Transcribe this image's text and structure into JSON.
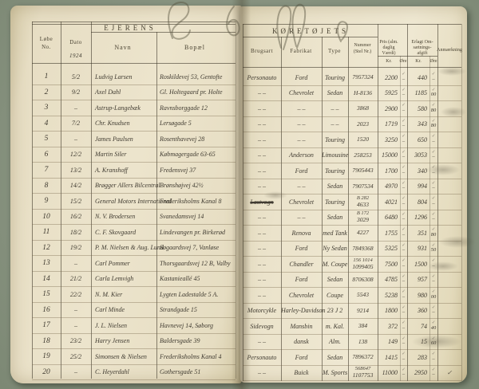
{
  "left_page": {
    "title": "EJERENS",
    "no_l1": "Løbe",
    "no_l2": "No.",
    "dato": "Dato",
    "year": "1924",
    "navn": "Navn",
    "bopael": "Bopæl"
  },
  "right_page": {
    "title": "KØRETØJETS",
    "brugsart": "Brugsart",
    "fabrikat": "Fabrikat",
    "type": "Type",
    "nummer_l1": "Nummer",
    "nummer_l2": "(Stel Nr.)",
    "pris_l1": "Pris (alm.",
    "pris_l2": "daglig",
    "pris_l3": "Værdi)",
    "afgift_l1": "Erlagt Om-",
    "afgift_l2": "sætnings-",
    "afgift_l3": "afgift",
    "anm": "Anmærkning",
    "kr": "Kr.",
    "ore": "Øre",
    "tick": "✓"
  },
  "rows": [
    {
      "no": "1",
      "dato": "5/2",
      "navn": "Ludvig Larsen",
      "bopael": "Roskildevej 53, Gentofte",
      "brugsart": "Personauto",
      "fabrikat": "Ford",
      "type": "Touring",
      "nummer": "7957324",
      "pris_kr": "2200",
      "pris_ore": "–",
      "afgift_kr": "440",
      "afgift_ore": "–",
      "anm": ""
    },
    {
      "no": "2",
      "dato": "9/2",
      "navn": "Axel Dahl",
      "bopael": "Gl. Holtegaard pr. Holte",
      "brugsart": "– –",
      "fabrikat": "Chevrolet",
      "type": "Sedan",
      "nummer": "H-8136",
      "pris_kr": "5925",
      "pris_ore": "–",
      "afgift_kr": "1185",
      "afgift_ore": "00",
      "anm": ""
    },
    {
      "no": "3",
      "dato": "–",
      "navn": "Astrup-Langebæk",
      "bopael": "Ravnsborggade 12",
      "brugsart": "– –",
      "fabrikat": "– –",
      "type": "– –",
      "nummer": "3868",
      "pris_kr": "2900",
      "pris_ore": "–",
      "afgift_kr": "580",
      "afgift_ore": "80",
      "anm": ""
    },
    {
      "no": "4",
      "dato": "7/2",
      "navn": "Chr. Knudsen",
      "bopael": "Lersøgade 5",
      "brugsart": "– –",
      "fabrikat": "– –",
      "type": "– –",
      "nummer": "2023",
      "pris_kr": "1719",
      "pris_ore": "–",
      "afgift_kr": "343",
      "afgift_ore": "80",
      "anm": ""
    },
    {
      "no": "5",
      "dato": "–",
      "navn": "James Paulsen",
      "bopael": "Rosenthavevej 28",
      "brugsart": "– –",
      "fabrikat": "– –",
      "type": "Touring",
      "nummer": "1520",
      "pris_kr": "3250",
      "pris_ore": "–",
      "afgift_kr": "650",
      "afgift_ore": "–",
      "anm": ""
    },
    {
      "no": "6",
      "dato": "12/2",
      "navn": "Martin Siler",
      "bopael": "Købmagergade 63-65",
      "brugsart": "– –",
      "fabrikat": "Anderson",
      "type": "Limousine",
      "nummer": "258253",
      "pris_kr": "15000",
      "pris_ore": "–",
      "afgift_kr": "3053",
      "afgift_ore": "–",
      "anm": ""
    },
    {
      "no": "7",
      "dato": "13/2",
      "navn": "A. Kranshoff",
      "bopael": "Fredensvej 37",
      "brugsart": "– –",
      "fabrikat": "Ford",
      "type": "Touring",
      "nummer": "7905443",
      "pris_kr": "1700",
      "pris_ore": "–",
      "afgift_kr": "340",
      "afgift_ore": "–",
      "anm": ""
    },
    {
      "no": "8",
      "dato": "14/2",
      "navn": "Brøgger Allers Bilcentral",
      "bopael": "Brønshøjvej 42½",
      "brugsart": "– –",
      "fabrikat": "– –",
      "type": "Sedan",
      "nummer": "7907534",
      "pris_kr": "4970",
      "pris_ore": "–",
      "afgift_kr": "994",
      "afgift_ore": "–",
      "anm": ""
    },
    {
      "no": "9",
      "dato": "15/2",
      "navn": "General Motors International",
      "bopael": "Frederiksholms Kanal 8",
      "brugsart": "Lastvogn",
      "brugsart_struck": true,
      "fabrikat": "Chevrolet",
      "type": "Touring",
      "nummer_top": "B 282",
      "nummer": "4633",
      "pris_kr": "4021",
      "pris_ore": "–",
      "afgift_kr": "804",
      "afgift_ore": "–",
      "anm": ""
    },
    {
      "no": "10",
      "dato": "16/2",
      "navn": "N. V. Brodersen",
      "bopael": "Svanedamsvej 14",
      "brugsart": "– –",
      "fabrikat": "– –",
      "type": "Sedan",
      "nummer_top": "B 172",
      "nummer": "3029",
      "pris_kr": "6480",
      "pris_ore": "–",
      "afgift_kr": "1296",
      "afgift_ore": "–",
      "anm": ""
    },
    {
      "no": "11",
      "dato": "18/2",
      "navn": "C. F. Skovgaard",
      "bopael": "Lindevangen pr. Birkerød",
      "brugsart": "– –",
      "fabrikat": "Renova",
      "type": "med Tank",
      "nummer": "4227",
      "pris_kr": "1755",
      "pris_ore": "–",
      "afgift_kr": "351",
      "afgift_ore": "80",
      "anm": ""
    },
    {
      "no": "12",
      "dato": "19/2",
      "navn": "P. M. Nielsen & Aug. Lund",
      "bopael": "Søgaardsvej 7, Vanløse",
      "brugsart": "– –",
      "fabrikat": "Ford",
      "type": "Ny Sedan",
      "nummer": "7849368",
      "pris_kr": "5325",
      "pris_ore": "–",
      "afgift_kr": "931",
      "afgift_ore": "50",
      "anm": ""
    },
    {
      "no": "13",
      "dato": "–",
      "navn": "Carl Pommer",
      "bopael": "Thorsgaardsvej 12 B, Valby",
      "brugsart": "– –",
      "fabrikat": "Chandler",
      "type": "M. Coupe",
      "nummer_top": "156 1014",
      "nummer": "1099405",
      "pris_kr": "7500",
      "pris_ore": "–",
      "afgift_kr": "1500",
      "afgift_ore": "–",
      "anm": ""
    },
    {
      "no": "14",
      "dato": "21/2",
      "navn": "Carla Lemvigh",
      "bopael": "Kastanieallé 45",
      "brugsart": "– –",
      "fabrikat": "Ford",
      "type": "Sedan",
      "nummer": "8706308",
      "pris_kr": "4785",
      "pris_ore": "–",
      "afgift_kr": "957",
      "afgift_ore": "–",
      "anm": ""
    },
    {
      "no": "15",
      "dato": "22/2",
      "navn": "N. M. Kier",
      "bopael": "Lygten Ladestalde 5 A.",
      "brugsart": "– –",
      "fabrikat": "Chevrolet",
      "type": "Coupe",
      "nummer": "5543",
      "pris_kr": "5238",
      "pris_ore": "–",
      "afgift_kr": "980",
      "afgift_ore": "00",
      "anm": ""
    },
    {
      "no": "16",
      "dato": "–",
      "navn": "Carl Minde",
      "bopael": "Strandgade 15",
      "brugsart": "Motorcykle",
      "fabrikat": "Harley-Davidson",
      "type": "23 J 2",
      "nummer": "9214",
      "pris_kr": "1800",
      "pris_ore": "–",
      "afgift_kr": "360",
      "afgift_ore": "–",
      "anm": ""
    },
    {
      "no": "17",
      "dato": "–",
      "navn": "J. L. Nielsen",
      "bopael": "Havnevej 14, Søborg",
      "brugsart": "Sidevogn",
      "fabrikat": "Mansbin",
      "type": "m. Kal.",
      "nummer": "384",
      "pris_kr": "372",
      "pris_ore": "–",
      "afgift_kr": "74",
      "afgift_ore": "40",
      "anm": ""
    },
    {
      "no": "18",
      "dato": "23/2",
      "navn": "Harry Jensen",
      "bopael": "Baldersgade 39",
      "brugsart": "– –",
      "fabrikat": "dansk",
      "type": "Alm.",
      "nummer": "138",
      "pris_kr": "149",
      "pris_ore": "–",
      "afgift_kr": "15",
      "afgift_ore": "60",
      "anm": ""
    },
    {
      "no": "19",
      "dato": "25/2",
      "navn": "Simonsen & Nielsen",
      "bopael": "Frederiksholms Kanal 4",
      "brugsart": "Personauto",
      "fabrikat": "Ford",
      "type": "Sedan",
      "nummer": "7896372",
      "pris_kr": "1415",
      "pris_ore": "–",
      "afgift_kr": "283",
      "afgift_ore": "–",
      "anm": ""
    },
    {
      "no": "20",
      "dato": "–",
      "navn": "C. Heyerdahl",
      "bopael": "Gothersgade 51",
      "brugsart": "– –",
      "fabrikat": "Buick",
      "type": "M. Sports",
      "nummer_top": "568647",
      "nummer": "1107753",
      "pris_kr": "11000",
      "pris_ore": "–",
      "afgift_kr": "2950",
      "afgift_ore": "–",
      "anm": "✓"
    }
  ]
}
